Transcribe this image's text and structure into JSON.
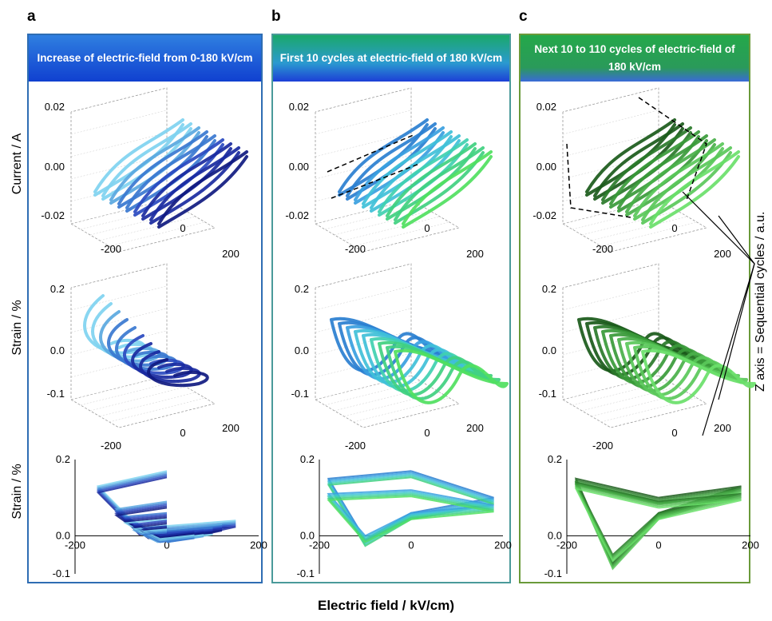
{
  "panels": [
    {
      "letter": "a",
      "header": "Increase of electric-field from 0-180 kV/cm",
      "colors": [
        "#7fd3f0",
        "#5aa8e0",
        "#3a78d0",
        "#2a4ac0",
        "#1a2aa0",
        "#101a80"
      ]
    },
    {
      "letter": "b",
      "header": "First 10 cycles at electric-field of 180 kV/cm",
      "colors": [
        "#2a7fd0",
        "#3aa0e0",
        "#40c0d8",
        "#40d0b0",
        "#40d080",
        "#50e060"
      ]
    },
    {
      "letter": "c",
      "header": "Next 10 to 110 cycles of electric-field of 180 kV/cm",
      "colors": [
        "#1a5a1a",
        "#2a7a2a",
        "#3a9a3a",
        "#4ab04a",
        "#5ac85a",
        "#6ae06a"
      ]
    }
  ],
  "row_labels": [
    "Current / A",
    "Strain / %",
    "Strain / %"
  ],
  "xlabel": "Electric field / kV/cm)",
  "zlabel": "Z axis = Sequential cycles / a.u.",
  "ticks3d": {
    "current_z": [
      "0.02",
      "0.00",
      "-0.02"
    ],
    "strain_z_a": [
      "0.2",
      "0.0",
      "-0.1"
    ],
    "strain_z_c": [
      "0.2",
      "0.0",
      "-0.1"
    ],
    "x": [
      "-200",
      "0",
      "200"
    ]
  },
  "ticks2d": {
    "y": [
      "0.2",
      "0.0",
      "-0.1"
    ],
    "x": [
      "-200",
      "0",
      "200"
    ]
  },
  "chart_data": [
    {
      "type": "line",
      "panel": "a",
      "view": "2d projection",
      "xlabel": "Electric field / kV/cm)",
      "ylabel": "Strain / %",
      "xlim": [
        -200,
        200
      ],
      "ylim": [
        -0.1,
        0.2
      ],
      "series": [
        {
          "values_x": [
            0,
            -150,
            -60,
            150,
            0
          ],
          "values_y": [
            0.17,
            0.13,
            0.02,
            0.04,
            0.0
          ]
        },
        {
          "values_x": [
            0,
            -110,
            -40,
            120,
            0
          ],
          "values_y": [
            0.09,
            0.07,
            0.01,
            0.03,
            0.0
          ]
        },
        {
          "values_x": [
            0,
            -90,
            -30,
            100,
            0
          ],
          "values_y": [
            0.06,
            0.05,
            0.01,
            0.02,
            0.0
          ]
        },
        {
          "values_x": [
            0,
            -70,
            -20,
            80,
            0
          ],
          "values_y": [
            0.04,
            0.03,
            0.0,
            0.015,
            0.0
          ]
        },
        {
          "values_x": [
            0,
            -50,
            -15,
            60,
            0
          ],
          "values_y": [
            0.025,
            0.02,
            0.0,
            0.01,
            0.0
          ]
        }
      ]
    },
    {
      "type": "line",
      "panel": "b",
      "view": "2d projection",
      "xlabel": "Electric field / kV/cm)",
      "ylabel": "Strain / %",
      "xlim": [
        -200,
        200
      ],
      "ylim": [
        -0.1,
        0.2
      ],
      "series": [
        {
          "values_x": [
            0,
            -180,
            -100,
            0,
            180,
            0
          ],
          "values_y": [
            0.17,
            0.15,
            -0.01,
            0.06,
            0.1,
            0.17
          ]
        },
        {
          "values_x": [
            0,
            -180,
            -100,
            0,
            180,
            0
          ],
          "values_y": [
            0.12,
            0.11,
            0.0,
            0.06,
            0.08,
            0.12
          ]
        }
      ]
    },
    {
      "type": "line",
      "panel": "c",
      "view": "2d projection",
      "xlabel": "Electric field / kV/cm)",
      "ylabel": "Strain / %",
      "xlim": [
        -200,
        200
      ],
      "ylim": [
        -0.1,
        0.2
      ],
      "series": [
        {
          "values_x": [
            0,
            -180,
            -100,
            0,
            180,
            0
          ],
          "values_y": [
            0.1,
            0.15,
            -0.07,
            0.06,
            0.13,
            0.1
          ]
        },
        {
          "values_x": [
            0,
            -180,
            -100,
            0,
            180,
            0
          ],
          "values_y": [
            0.09,
            0.14,
            -0.05,
            0.06,
            0.11,
            0.09
          ]
        }
      ]
    }
  ]
}
